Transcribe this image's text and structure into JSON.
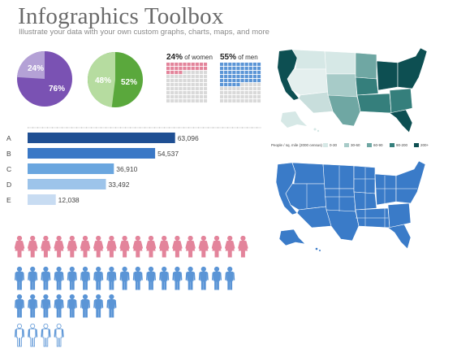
{
  "header": {
    "title": "Infographics Toolbox",
    "subtitle": "Illustrate your data with your own custom graphs, charts, maps, and more"
  },
  "colors": {
    "purple_light": "#b4a1d6",
    "purple_dark": "#7a52b3",
    "green_light": "#b6dca0",
    "green_dark": "#5aa83c",
    "pink": "#e3849b",
    "pink_empty": "#d9d9d9",
    "blue": "#5b95d6",
    "bar_colors": [
      "#1f4f93",
      "#3a78c6",
      "#6aa6df",
      "#9dc4ea",
      "#c8dcf2"
    ],
    "map_blue": "#3a7bc8",
    "map_teal_scale": [
      "#d6e8e6",
      "#a7cbc8",
      "#6fa7a3",
      "#357f7c",
      "#0d4f52"
    ]
  },
  "pies": [
    {
      "small_label": "24%",
      "large_label": "76%",
      "small_value": 24
    },
    {
      "small_label": "48%",
      "large_label": "52%",
      "small_value": 48
    }
  ],
  "waffles": [
    {
      "value_label": "24%",
      "caption": "of women",
      "filled": 24
    },
    {
      "value_label": "55%",
      "caption": "of men",
      "filled": 55
    }
  ],
  "chart_data": {
    "type": "bar",
    "orientation": "horizontal",
    "categories": [
      "A",
      "B",
      "C",
      "D",
      "E"
    ],
    "values": [
      63096,
      54537,
      36910,
      33492,
      12038
    ],
    "value_labels": [
      "63,096",
      "54,537",
      "36,910",
      "33,492",
      "12,038"
    ],
    "xlim": [
      0,
      100000
    ]
  },
  "map_legend": {
    "title": "People / sq. mile (2000 census)",
    "items": [
      "0-30",
      "30-60",
      "60-90",
      "90-200",
      "200+"
    ]
  },
  "pictogram": {
    "rows": [
      {
        "figure": "woman",
        "count": 18,
        "color": "pink"
      },
      {
        "figure": "man",
        "count": 17,
        "color": "blue"
      },
      {
        "figure": "man",
        "count": 8,
        "color": "blue"
      },
      {
        "figure": "man_outline",
        "count": 4,
        "color": "blue"
      }
    ]
  }
}
